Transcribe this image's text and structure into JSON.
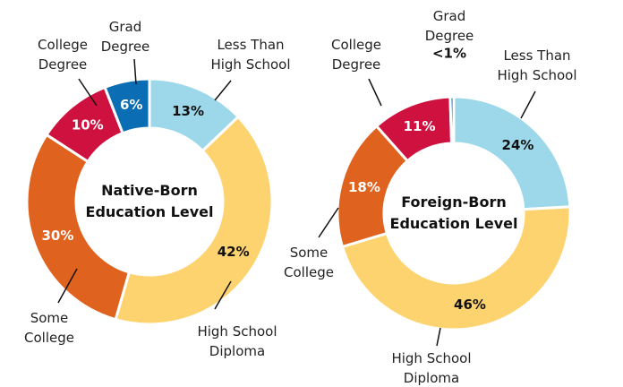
{
  "chart_data": [
    {
      "type": "donut",
      "center_label": [
        "Native-Born",
        "Education Level"
      ],
      "categories": [
        [
          "Less Than",
          "High School"
        ],
        [
          "High School",
          "Diploma"
        ],
        [
          "Some",
          "College"
        ],
        [
          "College",
          "Degree"
        ],
        [
          "Grad",
          "Degree"
        ]
      ],
      "values": [
        13,
        42,
        30,
        10,
        6
      ],
      "value_labels": [
        "13%",
        "42%",
        "30%",
        "10%",
        "6%"
      ],
      "colors": [
        "#9dd8ea",
        "#fdd36f",
        "#e0621f",
        "#cf1140",
        "#0b6db3"
      ]
    },
    {
      "type": "donut",
      "center_label": [
        "Foreign-Born",
        "Education Level"
      ],
      "categories": [
        [
          "Less Than",
          "High School"
        ],
        [
          "High School",
          "Diploma"
        ],
        [
          "Some",
          "College"
        ],
        [
          "College",
          "Degree"
        ],
        [
          "Grad",
          "Degree"
        ]
      ],
      "values": [
        24,
        46,
        18,
        11,
        0.5
      ],
      "value_labels": [
        "24%",
        "46%",
        "18%",
        "11%",
        "<1%"
      ],
      "colors": [
        "#9dd8ea",
        "#fdd36f",
        "#e0621f",
        "#cf1140",
        "#0b6db3"
      ]
    }
  ]
}
